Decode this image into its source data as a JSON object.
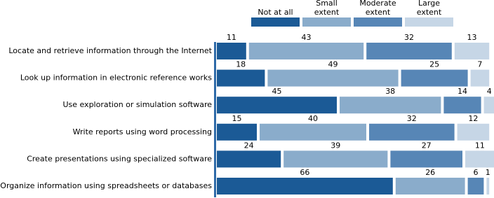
{
  "chart_data": {
    "type": "stacked-bar-horizontal",
    "categories": [
      "Locate and retrieve information through the Internet",
      "Look up information in electronic reference works",
      "Use exploration or simulation software",
      "Write reports using word processing",
      "Create presentations using specialized software",
      "Organize information using spreadsheets or databases"
    ],
    "series": [
      {
        "name": "Not at all",
        "color": "#1b5a96",
        "values": [
          11,
          18,
          45,
          15,
          24,
          66
        ]
      },
      {
        "name": "Small extent",
        "color": "#8aaccb",
        "values": [
          43,
          49,
          38,
          40,
          39,
          26
        ]
      },
      {
        "name": "Moderate extent",
        "color": "#5786b6",
        "values": [
          32,
          25,
          14,
          32,
          27,
          6
        ]
      },
      {
        "name": "Large extent",
        "color": "#c6d6e6",
        "values": [
          13,
          7,
          4,
          12,
          11,
          1
        ]
      }
    ]
  }
}
